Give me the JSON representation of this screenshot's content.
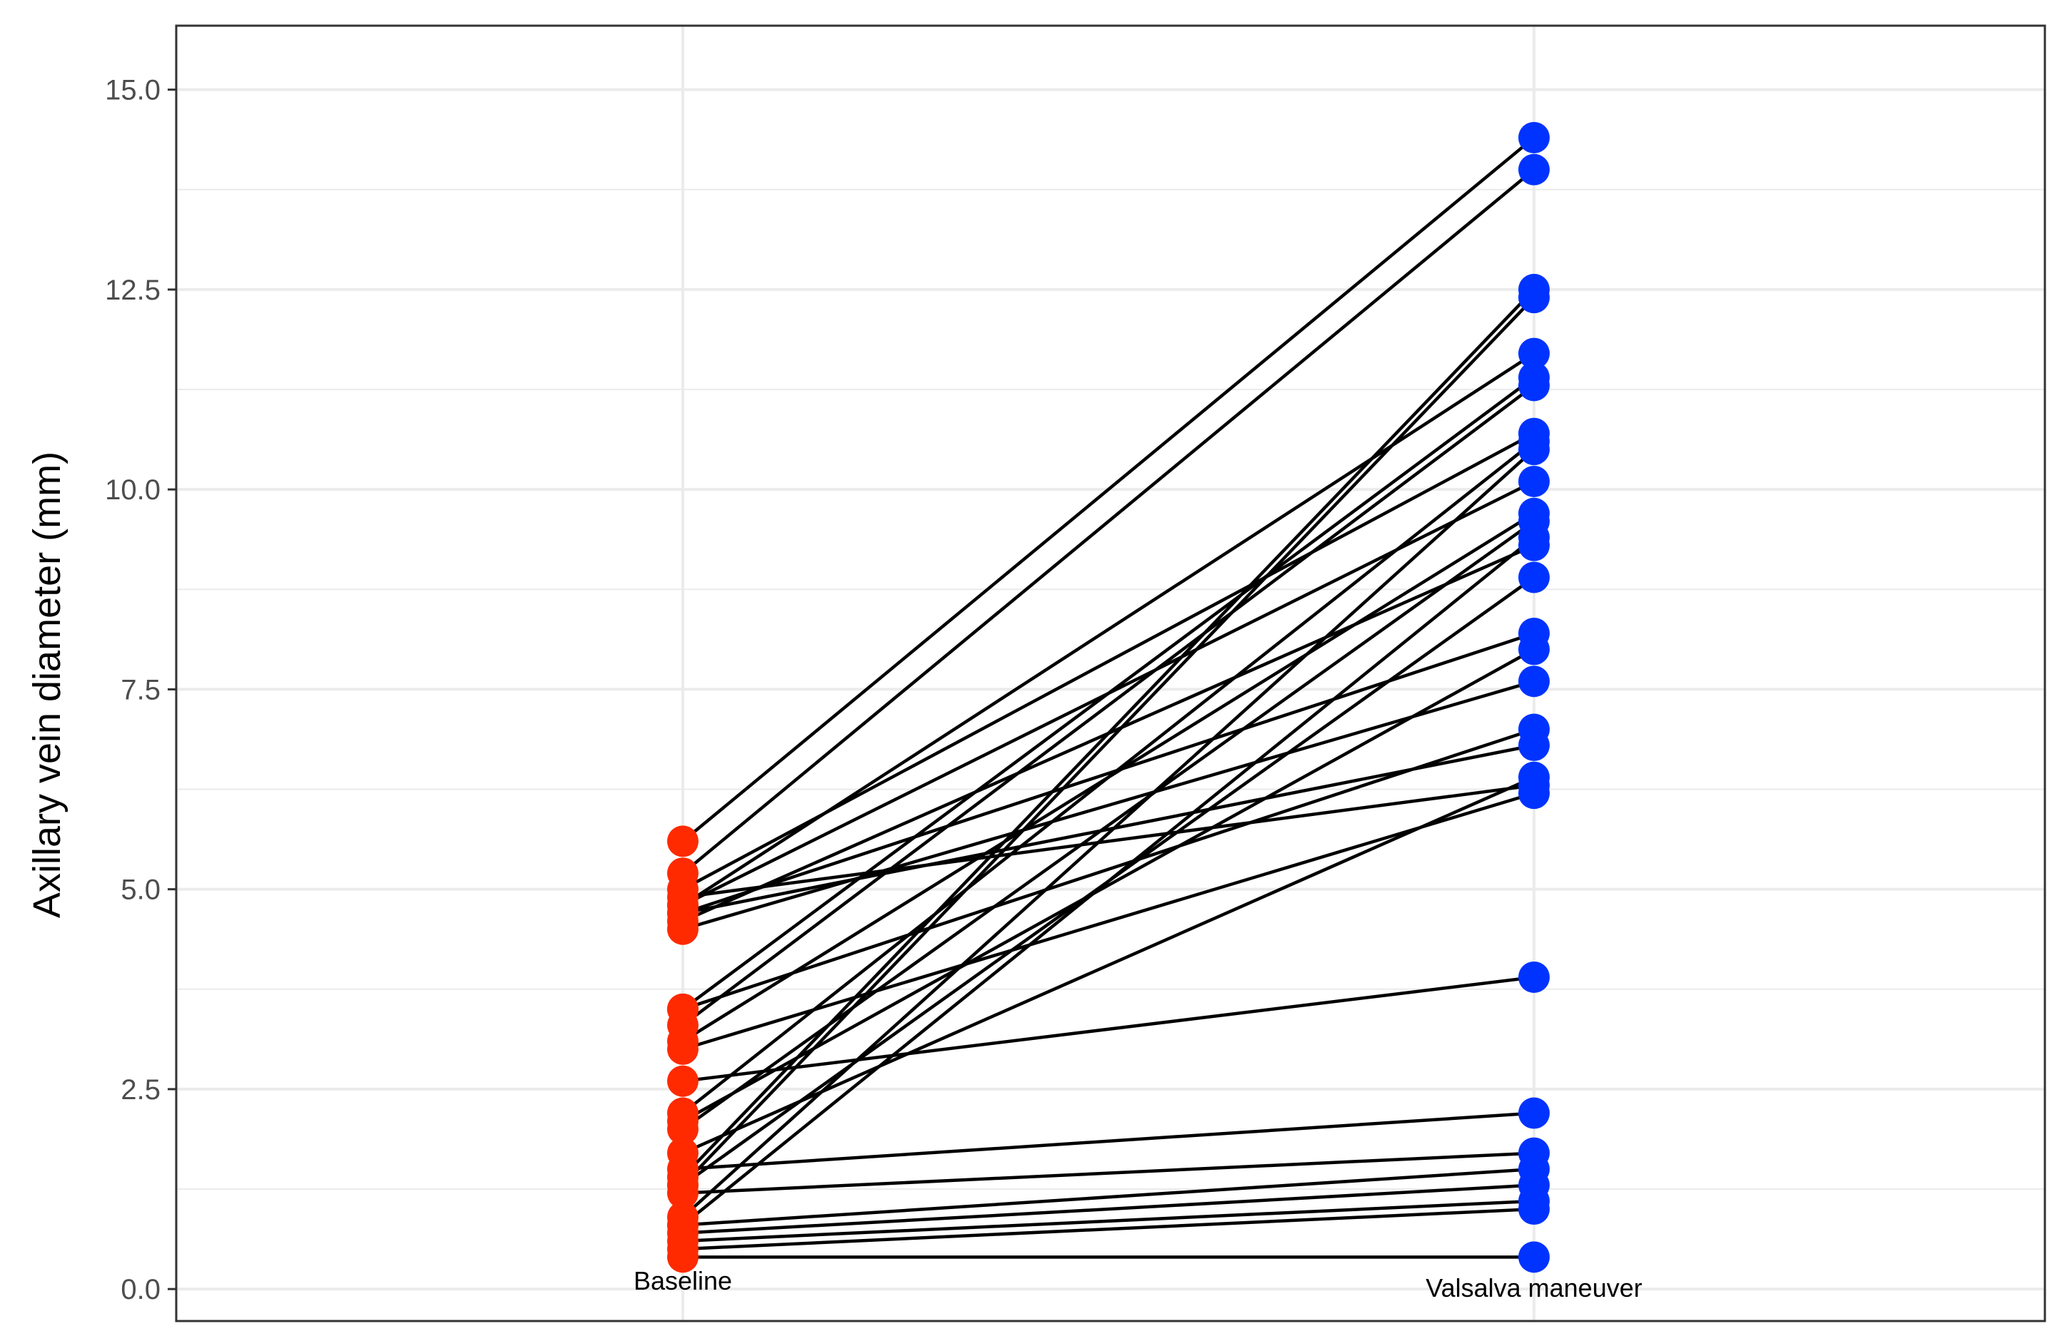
{
  "chart_data": {
    "type": "line",
    "title": "",
    "xlabel": "",
    "ylabel": "Axillary vein diameter (mm)",
    "categories": [
      "Baseline",
      "Valsalva maneuver"
    ],
    "ylim": [
      -0.4,
      15.8
    ],
    "yticks": [
      {
        "value": 0.0,
        "label": "0.0"
      },
      {
        "value": 2.5,
        "label": "2.5"
      },
      {
        "value": 5.0,
        "label": "5.0"
      },
      {
        "value": 7.5,
        "label": "7.5"
      },
      {
        "value": 10.0,
        "label": "10.0"
      },
      {
        "value": 12.5,
        "label": "12.5"
      },
      {
        "value": 15.0,
        "label": "15.0"
      }
    ],
    "grid": true,
    "colors": {
      "baseline": "#ff2a00",
      "valsalva": "#0033ff",
      "line": "#000000",
      "grid": "#ebebeb",
      "panel_border": "#333333"
    },
    "pairs": [
      [
        0.4,
        0.4
      ],
      [
        0.5,
        1.0
      ],
      [
        0.6,
        1.1
      ],
      [
        0.7,
        1.3
      ],
      [
        0.8,
        1.5
      ],
      [
        0.8,
        9.4
      ],
      [
        0.9,
        10.5
      ],
      [
        1.2,
        1.7
      ],
      [
        1.3,
        12.4
      ],
      [
        1.3,
        8.9
      ],
      [
        1.4,
        12.5
      ],
      [
        1.5,
        2.2
      ],
      [
        1.7,
        6.4
      ],
      [
        2.0,
        9.6
      ],
      [
        2.1,
        8.0
      ],
      [
        2.2,
        10.6
      ],
      [
        2.6,
        3.9
      ],
      [
        3.0,
        6.2
      ],
      [
        3.1,
        9.7
      ],
      [
        3.3,
        11.3
      ],
      [
        3.5,
        11.4
      ],
      [
        3.5,
        7.0
      ],
      [
        4.5,
        7.6
      ],
      [
        4.6,
        9.3
      ],
      [
        4.7,
        6.8
      ],
      [
        4.7,
        8.2
      ],
      [
        4.8,
        11.7
      ],
      [
        4.8,
        10.1
      ],
      [
        4.9,
        6.3
      ],
      [
        5.0,
        10.7
      ],
      [
        5.2,
        14.0
      ],
      [
        5.6,
        14.4
      ]
    ]
  }
}
